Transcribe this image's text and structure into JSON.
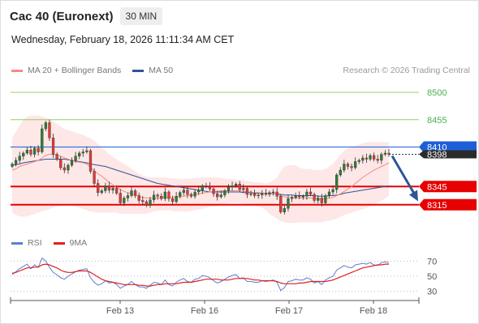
{
  "header": {
    "instrument": "Cac 40 (Euronext)",
    "timeframe": "30 MIN",
    "datetime": "Wednesday, February 18, 2026 11:11:34 AM CET"
  },
  "legend": {
    "ma20": {
      "label": "MA 20 + Bollinger Bands",
      "color": "#f28b82"
    },
    "ma50": {
      "label": "MA 50",
      "color": "#2f5597"
    },
    "rsi": {
      "label": "RSI",
      "color": "#5b7fd1"
    },
    "rsi_ma": {
      "label": "9MA",
      "color": "#e02020"
    }
  },
  "copyright": "Research © 2026 Trading Central",
  "chart_data": {
    "type": "candlestick",
    "price_axis": {
      "min": 8280,
      "max": 8520
    },
    "resistance_lines": [
      8500,
      8455
    ],
    "support_lines": [
      8345,
      8315
    ],
    "last_price": 8398,
    "pivot": 8410,
    "price_labels": [
      {
        "value": 8500,
        "text": "8500",
        "style": "green"
      },
      {
        "value": 8455,
        "text": "8455",
        "style": "green"
      },
      {
        "value": 8410,
        "text": "8410",
        "style": "blue"
      },
      {
        "value": 8398,
        "text": "8398",
        "style": "dark"
      },
      {
        "value": 8345,
        "text": "8345",
        "style": "red"
      },
      {
        "value": 8315,
        "text": "8315",
        "style": "red"
      }
    ],
    "forecast_arrow": {
      "from": 8398,
      "to": 8318
    },
    "x_labels": [
      "Feb 13",
      "Feb 16",
      "Feb 17",
      "Feb 18"
    ],
    "rsi_axis": {
      "min": 20,
      "max": 80,
      "ticks": [
        70,
        50,
        30
      ]
    },
    "closes": [
      8382,
      8388,
      8395,
      8400,
      8405,
      8398,
      8408,
      8402,
      8440,
      8450,
      8425,
      8398,
      8390,
      8376,
      8372,
      8380,
      8388,
      8395,
      8400,
      8402,
      8404,
      8370,
      8350,
      8335,
      8338,
      8346,
      8339,
      8342,
      8334,
      8318,
      8326,
      8330,
      8338,
      8330,
      8322,
      8320,
      8314,
      8323,
      8331,
      8329,
      8325,
      8336,
      8325,
      8320,
      8329,
      8335,
      8339,
      8332,
      8329,
      8336,
      8339,
      8346,
      8345,
      8341,
      8333,
      8328,
      8331,
      8338,
      8344,
      8346,
      8349,
      8340,
      8342,
      8332,
      8333,
      8330,
      8331,
      8334,
      8332,
      8335,
      8336,
      8329,
      8303,
      8309,
      8325,
      8327,
      8330,
      8328,
      8329,
      8336,
      8332,
      8322,
      8326,
      8318,
      8330,
      8336,
      8340,
      8364,
      8372,
      8382,
      8378,
      8376,
      8386,
      8388,
      8392,
      8390,
      8396,
      8390,
      8388,
      8398,
      8400,
      8398
    ],
    "ma20": [
      8372,
      8374,
      8378,
      8380,
      8382,
      8384,
      8386,
      8388,
      8392,
      8396,
      8398,
      8398,
      8397,
      8395,
      8392,
      8390,
      8388,
      8386,
      8385,
      8384,
      8382,
      8376,
      8371,
      8366,
      8362,
      8357,
      8352,
      8348,
      8344,
      8340,
      8337,
      8335,
      8333,
      8331,
      8329,
      8327,
      8326,
      8326,
      8326,
      8326,
      8326,
      8327,
      8327,
      8327,
      8328,
      8328,
      8329,
      8330,
      8331,
      8332,
      8333,
      8334,
      8335,
      8336,
      8337,
      8337,
      8338,
      8338,
      8338,
      8338,
      8338,
      8338,
      8337,
      8336,
      8336,
      8335,
      8335,
      8334,
      8334,
      8333,
      8333,
      8332,
      8330,
      8328,
      8327,
      8327,
      8326,
      8326,
      8326,
      8326,
      8326,
      8325,
      8325,
      8324,
      8325,
      8326,
      8327,
      8330,
      8333,
      8337,
      8341,
      8345,
      8350,
      8355,
      8360,
      8364,
      8368,
      8372,
      8375,
      8378,
      8381,
      8384
    ],
    "bb_upper": [
      8425,
      8435,
      8445,
      8455,
      8460,
      8462,
      8462,
      8462,
      8460,
      8458,
      8456,
      8452,
      8448,
      8444,
      8440,
      8438,
      8436,
      8434,
      8432,
      8430,
      8427,
      8424,
      8420,
      8415,
      8410,
      8404,
      8398,
      8394,
      8390,
      8386,
      8382,
      8378,
      8374,
      8370,
      8366,
      8363,
      8361,
      8360,
      8360,
      8360,
      8360,
      8360,
      8359,
      8358,
      8358,
      8357,
      8357,
      8358,
      8358,
      8359,
      8359,
      8360,
      8360,
      8360,
      8360,
      8360,
      8359,
      8358,
      8357,
      8357,
      8356,
      8356,
      8355,
      8354,
      8353,
      8352,
      8352,
      8351,
      8350,
      8352,
      8355,
      8360,
      8370,
      8378,
      8380,
      8380,
      8380,
      8376,
      8374,
      8374,
      8374,
      8372,
      8372,
      8372,
      8374,
      8378,
      8382,
      8390,
      8398,
      8404,
      8408,
      8410,
      8412,
      8414,
      8416,
      8418,
      8418,
      8418,
      8418,
      8418,
      8418,
      8418
    ],
    "bb_lower": [
      8302,
      8298,
      8296,
      8295,
      8296,
      8298,
      8300,
      8302,
      8304,
      8306,
      8308,
      8310,
      8312,
      8314,
      8314,
      8314,
      8314,
      8312,
      8310,
      8308,
      8306,
      8304,
      8303,
      8302,
      8302,
      8302,
      8302,
      8302,
      8302,
      8300,
      8300,
      8300,
      8300,
      8300,
      8300,
      8300,
      8300,
      8302,
      8304,
      8305,
      8306,
      8306,
      8306,
      8305,
      8304,
      8304,
      8304,
      8304,
      8305,
      8306,
      8307,
      8308,
      8310,
      8312,
      8312,
      8313,
      8314,
      8316,
      8318,
      8318,
      8318,
      8318,
      8317,
      8316,
      8314,
      8313,
      8312,
      8310,
      8306,
      8300,
      8296,
      8292,
      8288,
      8286,
      8285,
      8285,
      8285,
      8286,
      8286,
      8286,
      8286,
      8286,
      8286,
      8286,
      8288,
      8289,
      8290,
      8292,
      8295,
      8298,
      8300,
      8302,
      8304,
      8306,
      8308,
      8310,
      8312,
      8315,
      8318,
      8322,
      8325,
      8330
    ],
    "ma50": [
      8380,
      8381,
      8382,
      8384,
      8385,
      8386,
      8387,
      8388,
      8389,
      8390,
      8390,
      8390,
      8390,
      8390,
      8390,
      8389,
      8388,
      8387,
      8386,
      8385,
      8384,
      8382,
      8381,
      8380,
      8379,
      8378,
      8376,
      8374,
      8372,
      8370,
      8368,
      8366,
      8364,
      8362,
      8360,
      8358,
      8356,
      8354,
      8352,
      8350,
      8349,
      8348,
      8347,
      8346,
      8345,
      8344,
      8343,
      8342,
      8341,
      8340,
      8339,
      8338,
      8337,
      8336,
      8336,
      8336,
      8336,
      8336,
      8336,
      8336,
      8336,
      8336,
      8335,
      8335,
      8335,
      8334,
      8334,
      8334,
      8334,
      8334,
      8333,
      8333,
      8332,
      8331,
      8331,
      8331,
      8330,
      8330,
      8330,
      8330,
      8330,
      8330,
      8329,
      8329,
      8329,
      8330,
      8330,
      8331,
      8332,
      8334,
      8335,
      8336,
      8337,
      8338,
      8339,
      8340,
      8341,
      8342,
      8343,
      8344,
      8345,
      8346
    ],
    "rsi": [
      52,
      56,
      60,
      63,
      66,
      60,
      65,
      62,
      74,
      70,
      62,
      55,
      52,
      48,
      46,
      50,
      53,
      56,
      58,
      59,
      60,
      48,
      42,
      38,
      40,
      44,
      41,
      42,
      39,
      34,
      37,
      39,
      43,
      39,
      36,
      36,
      34,
      38,
      42,
      41,
      39,
      45,
      39,
      37,
      42,
      45,
      47,
      43,
      42,
      46,
      47,
      51,
      50,
      48,
      44,
      41,
      43,
      46,
      49,
      51,
      52,
      47,
      48,
      43,
      43,
      42,
      42,
      44,
      43,
      44,
      45,
      42,
      31,
      35,
      43,
      44,
      46,
      45,
      45,
      48,
      46,
      41,
      43,
      39,
      45,
      48,
      50,
      58,
      61,
      64,
      62,
      61,
      65,
      66,
      67,
      66,
      68,
      65,
      64,
      68,
      69,
      68
    ],
    "rsi_ma": [
      54,
      55,
      57,
      59,
      61,
      61,
      62,
      62,
      65,
      66,
      65,
      63,
      61,
      58,
      56,
      55,
      55,
      56,
      57,
      57,
      57,
      55,
      52,
      49,
      46,
      44,
      43,
      42,
      41,
      40,
      39,
      39,
      39,
      39,
      38,
      38,
      37,
      37,
      38,
      39,
      39,
      40,
      40,
      40,
      40,
      41,
      42,
      42,
      42,
      43,
      44,
      45,
      46,
      46,
      46,
      46,
      45,
      45,
      45,
      46,
      47,
      47,
      47,
      47,
      46,
      45,
      45,
      44,
      44,
      44,
      44,
      43,
      41,
      40,
      40,
      40,
      40,
      41,
      41,
      42,
      43,
      43,
      43,
      43,
      43,
      44,
      45,
      47,
      49,
      51,
      53,
      55,
      57,
      59,
      61,
      62,
      63,
      64,
      65,
      65,
      66,
      66
    ]
  }
}
